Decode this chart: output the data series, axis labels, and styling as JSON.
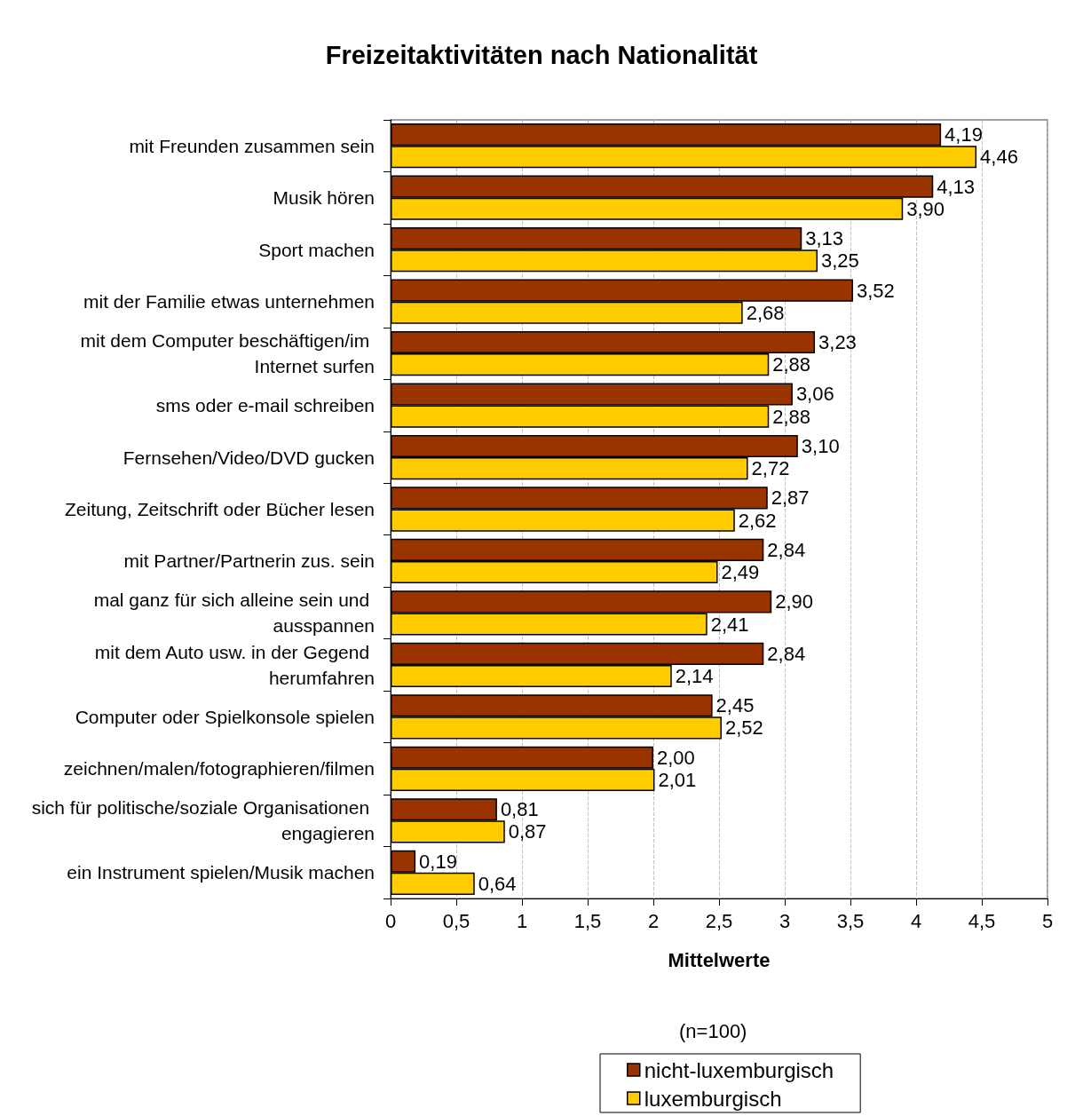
{
  "chart_data": {
    "type": "bar",
    "orientation": "horizontal",
    "title": "Freizeitaktivitäten nach Nationalität",
    "xlabel": "Mittelwerte",
    "categories": [
      "mit Freunden zusammen sein",
      "Musik hören",
      "Sport machen",
      "mit der Familie etwas unternehmen",
      "mit dem Computer beschäftigen/im Internet surfen",
      "sms oder e-mail schreiben",
      "Fernsehen/Video/DVD gucken",
      "Zeitung, Zeitschrift oder Bücher lesen",
      "mit Partner/Partnerin zus. sein",
      "mal ganz für sich alleine sein und ausspannen",
      "mit dem Auto usw. in der Gegend herumfahren",
      "Computer oder Spielkonsole spielen",
      "zeichnen/malen/fotographieren/filmen",
      "sich für politische/soziale Organisationen engagieren",
      "ein Instrument spielen/Musik machen"
    ],
    "series": [
      {
        "name": "nicht-luxemburgisch",
        "color": "#993300",
        "values": [
          4.19,
          4.13,
          3.13,
          3.52,
          3.23,
          3.06,
          3.1,
          2.87,
          2.84,
          2.9,
          2.84,
          2.45,
          2.0,
          0.81,
          0.19
        ],
        "value_labels": [
          "4,19",
          "4,13",
          "3,13",
          "3,52",
          "3,23",
          "3,06",
          "3,10",
          "2,87",
          "2,84",
          "2,90",
          "2,84",
          "2,45",
          "2,00",
          "0,81",
          "0,19"
        ]
      },
      {
        "name": "luxemburgisch",
        "color": "#ffcc00",
        "values": [
          4.46,
          3.9,
          3.25,
          2.68,
          2.88,
          2.88,
          2.72,
          2.62,
          2.49,
          2.41,
          2.14,
          2.52,
          2.01,
          0.87,
          0.64
        ],
        "value_labels": [
          "4,46",
          "3,90",
          "3,25",
          "2,68",
          "2,88",
          "2,88",
          "2,72",
          "2,62",
          "2,49",
          "2,41",
          "2,14",
          "2,52",
          "2,01",
          "0,87",
          "0,64"
        ]
      }
    ],
    "xlim": [
      0,
      5
    ],
    "xticks": [
      0,
      {
        "value": 0.5,
        "label": "0,5"
      },
      1,
      {
        "value": 1.5,
        "label": "1,5"
      },
      2,
      {
        "value": 2.5,
        "label": "2,5"
      },
      3,
      {
        "value": 3.5,
        "label": "3,5"
      },
      4,
      {
        "value": 4.5,
        "label": "4,5"
      },
      5
    ],
    "grid": "x",
    "legend": "bottom",
    "annotations": [
      "(n=100)"
    ]
  }
}
